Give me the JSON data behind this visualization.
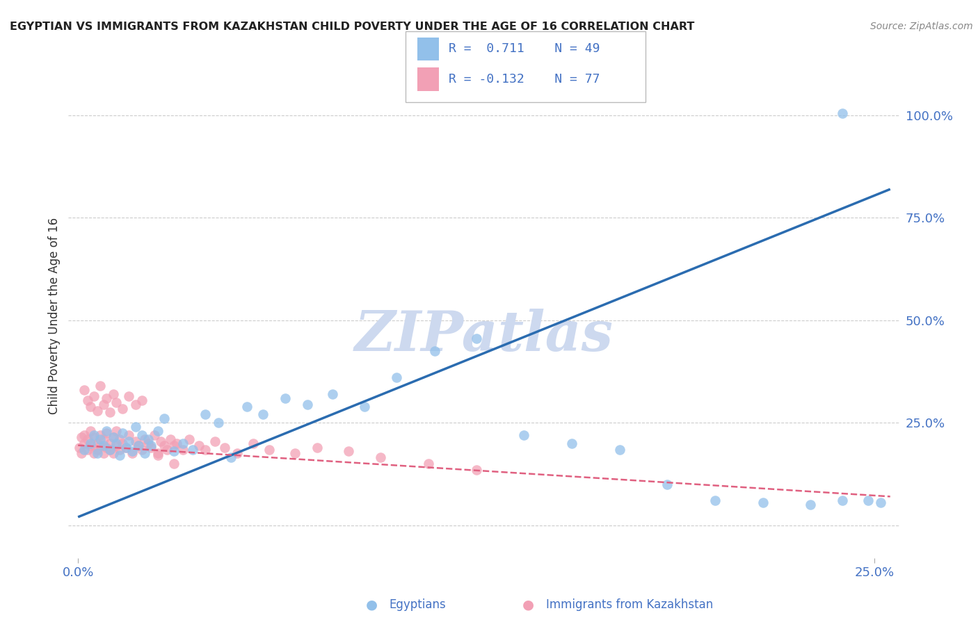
{
  "title": "EGYPTIAN VS IMMIGRANTS FROM KAZAKHSTAN CHILD POVERTY UNDER THE AGE OF 16 CORRELATION CHART",
  "source": "Source: ZipAtlas.com",
  "ylabel": "Child Poverty Under the Age of 16",
  "xlim": [
    -0.003,
    0.258
  ],
  "ylim": [
    -0.08,
    1.1
  ],
  "blue_R": 0.711,
  "blue_N": 49,
  "pink_R": -0.132,
  "pink_N": 77,
  "blue_color": "#92C0EA",
  "pink_color": "#F2A0B5",
  "blue_line_color": "#2B6CB0",
  "pink_line_color": "#E06080",
  "grid_color": "#CCCCCC",
  "background_color": "#FFFFFF",
  "watermark_color": "#CDD9EF",
  "right_tick_color": "#4472C4",
  "blue_trendline": [
    0.0,
    0.025,
    0.255
  ],
  "blue_trendline_y": [
    0.02,
    0.1,
    0.82
  ],
  "pink_trendline_x": [
    0.0,
    0.255
  ],
  "pink_trendline_y": [
    0.195,
    0.07
  ],
  "blue_scatter_x": [
    0.002,
    0.004,
    0.005,
    0.006,
    0.007,
    0.008,
    0.009,
    0.01,
    0.011,
    0.012,
    0.013,
    0.014,
    0.015,
    0.016,
    0.017,
    0.018,
    0.019,
    0.02,
    0.021,
    0.022,
    0.023,
    0.025,
    0.027,
    0.03,
    0.033,
    0.036,
    0.04,
    0.044,
    0.048,
    0.053,
    0.058,
    0.065,
    0.072,
    0.08,
    0.09,
    0.1,
    0.112,
    0.125,
    0.14,
    0.155,
    0.17,
    0.185,
    0.2,
    0.215,
    0.23,
    0.24,
    0.248,
    0.252,
    0.24
  ],
  "blue_scatter_y": [
    0.185,
    0.2,
    0.22,
    0.175,
    0.21,
    0.195,
    0.23,
    0.185,
    0.215,
    0.2,
    0.17,
    0.225,
    0.19,
    0.205,
    0.18,
    0.24,
    0.195,
    0.22,
    0.175,
    0.21,
    0.195,
    0.23,
    0.26,
    0.18,
    0.2,
    0.185,
    0.27,
    0.25,
    0.165,
    0.29,
    0.27,
    0.31,
    0.295,
    0.32,
    0.29,
    0.36,
    0.425,
    0.455,
    0.22,
    0.2,
    0.185,
    0.1,
    0.06,
    0.055,
    0.05,
    0.06,
    0.06,
    0.055,
    1.005
  ],
  "pink_scatter_x": [
    0.0005,
    0.001,
    0.001,
    0.002,
    0.002,
    0.003,
    0.003,
    0.004,
    0.004,
    0.005,
    0.005,
    0.006,
    0.006,
    0.007,
    0.007,
    0.008,
    0.008,
    0.009,
    0.009,
    0.01,
    0.01,
    0.011,
    0.011,
    0.012,
    0.012,
    0.013,
    0.013,
    0.014,
    0.015,
    0.016,
    0.017,
    0.018,
    0.019,
    0.02,
    0.021,
    0.022,
    0.023,
    0.024,
    0.025,
    0.026,
    0.027,
    0.028,
    0.029,
    0.03,
    0.031,
    0.033,
    0.035,
    0.038,
    0.04,
    0.043,
    0.046,
    0.05,
    0.055,
    0.06,
    0.068,
    0.075,
    0.085,
    0.095,
    0.11,
    0.125,
    0.002,
    0.003,
    0.004,
    0.005,
    0.006,
    0.007,
    0.008,
    0.009,
    0.01,
    0.011,
    0.012,
    0.014,
    0.016,
    0.018,
    0.02,
    0.025,
    0.03
  ],
  "pink_scatter_y": [
    0.19,
    0.175,
    0.215,
    0.2,
    0.22,
    0.185,
    0.21,
    0.195,
    0.23,
    0.175,
    0.215,
    0.2,
    0.185,
    0.22,
    0.195,
    0.175,
    0.21,
    0.19,
    0.225,
    0.185,
    0.2,
    0.215,
    0.175,
    0.23,
    0.195,
    0.185,
    0.21,
    0.2,
    0.19,
    0.22,
    0.175,
    0.205,
    0.195,
    0.185,
    0.21,
    0.2,
    0.19,
    0.22,
    0.175,
    0.205,
    0.195,
    0.185,
    0.21,
    0.195,
    0.2,
    0.185,
    0.21,
    0.195,
    0.185,
    0.205,
    0.19,
    0.175,
    0.2,
    0.185,
    0.175,
    0.19,
    0.18,
    0.165,
    0.15,
    0.135,
    0.33,
    0.305,
    0.29,
    0.315,
    0.28,
    0.34,
    0.295,
    0.31,
    0.275,
    0.32,
    0.3,
    0.285,
    0.315,
    0.295,
    0.305,
    0.17,
    0.15
  ]
}
